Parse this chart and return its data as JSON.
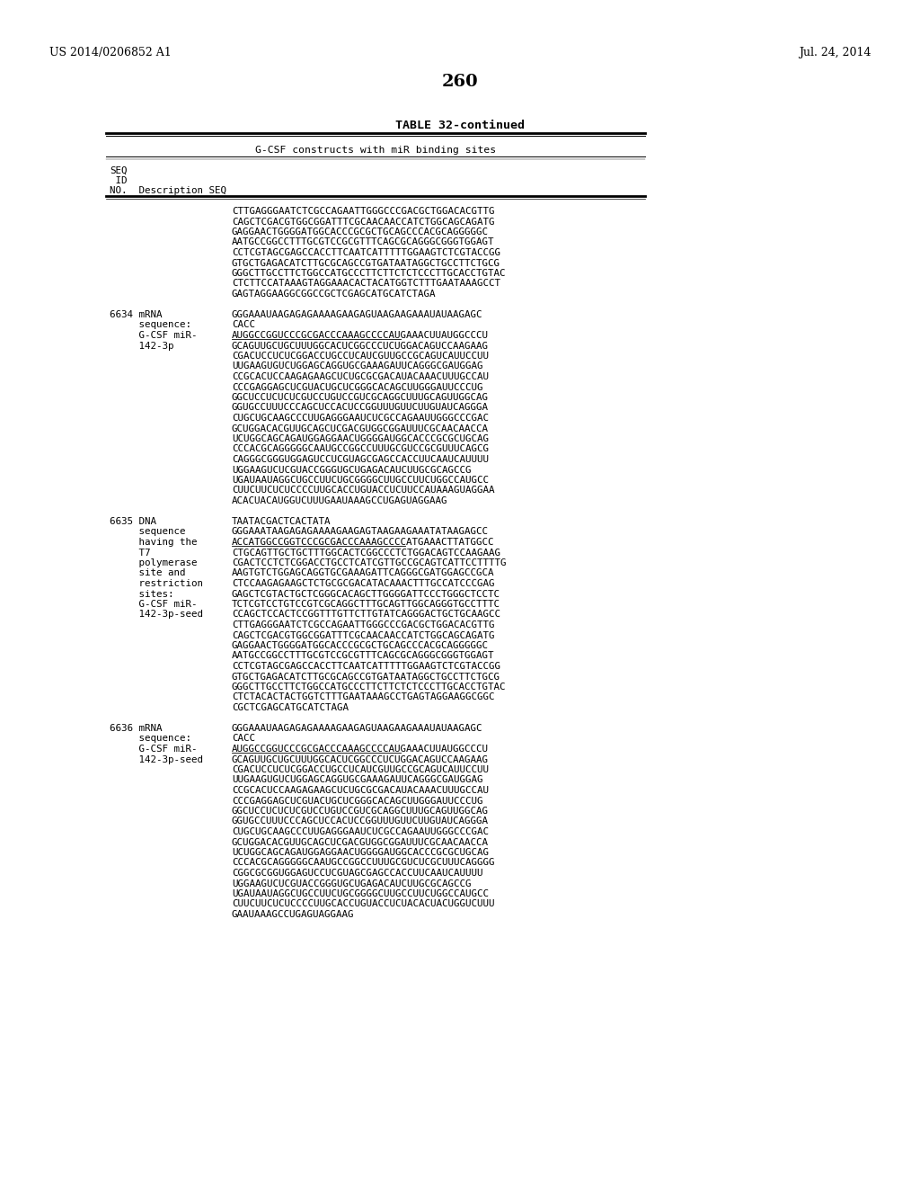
{
  "page_number": "260",
  "patent_number": "US 2014/0206852 A1",
  "date": "Jul. 24, 2014",
  "table_title": "TABLE 32-continued",
  "table_subtitle": "G-CSF constructs with miR binding sites",
  "background_color": "#ffffff",
  "text_color": "#000000",
  "leading_seq_lines": [
    "CTTGAGGGAATCTCGCCAGAATTGGGCCCGACGCTGGACACGTTG",
    "CAGCTCGACGTGGCGGATTTCGCAACAACCATCTGGCAGCAGATG",
    "GAGGAACTGGGGATGGCACCCGCGCTGCAGCCCACGCAGGGGGC",
    "AATGCCGGCCTTTGCGTCCGCGTTTCAGCGCAGGGCGGGTGGAGT",
    "CCTCGTAGCGAGCCACCTTCAATCATTTTTGGAAGTCTCGTACCGG",
    "GTGCTGAGACATCTTGCGCAGCCGTGATAATAGGCTGCCTTCTGCG",
    "GGGCTTGCCTTCTGGCCATGCCCTTCTTCTCTCCCTTGCACCTGTAC",
    "CTCTTCCATAAAGTAGGAAACACTACATGGTCTTTGAATAAAGCCT",
    "GAGTAGGAAGGCGGCCGCTCGAGCATGCATCTAGA"
  ],
  "entries": [
    {
      "seq_id": "6634",
      "type": "mRNA",
      "desc_col": [
        [
          "6634 mRNA",
          "GGGAAAUAAGAGAGAAAAGAAGAGUAAGAAGAAAUAUAAGAGC"
        ],
        [
          "     sequence:",
          "CACC"
        ],
        [
          "     G-CSF miR-",
          "AUGGCCGGUCCCGCGACCCAAAGCCCCAUGAAACUUAUGGCCCU"
        ],
        [
          "     142-3p",
          "GCAGUUGCUGCUUUGGCACUCGGCCCUCUGGACAGUCCAAGAAG"
        ],
        [
          "",
          "CGACUCCUCUCGGACCUGCCUCAUCGUUGCCGCAGUCAUUCCUU"
        ],
        [
          "",
          "UUGAAGUGUCUGGAGCAGGUGCGAAAGAUUCAGGGCGAUGGAG"
        ],
        [
          "",
          "CCGCACUCCAAGAGAAGCUCUGCGCGACAUACAAACUUUGCCAU"
        ],
        [
          "",
          "CCCGAGGAGCUCGUACUGCUCGGGCACAGCUUGGGAUUCCCUG"
        ],
        [
          "",
          "GGCUCCUCUCUCGUCCUGUCCGUCGCAGGCUUUGCAGUUGGCAG"
        ],
        [
          "",
          "GGUGCCUUUCCCAGCUCCACUCCGGUUUGUUCUUGUAUCAGGGA"
        ],
        [
          "",
          "CUGCUGCAAGCCCUUGAGGGAAUCUCGCCAGAAUUGGGCCCGAC"
        ],
        [
          "",
          "GCUGGACACGUUGCAGCUCGACGUGGCGGAUUUCGCAACAACCA"
        ],
        [
          "",
          "UCUGGCAGCAGAUGGAGGAACUGGGGAUGGCACCCGCGCUGCAG"
        ],
        [
          "",
          "CCCACGCAGGGGGCAAUGCCGGCCUUUGCGUCCGCGUUUCAGCG"
        ],
        [
          "",
          "CAGGGCGGGUGGAGUCCUCGUAGCGAGCCACCUUCAAUCAUUUU"
        ],
        [
          "",
          "UGGAAGUCUCGUACCGGGUGCUGAGACAUCUUGCGCAGCCG"
        ],
        [
          "",
          "UGAUAAUAGGCUGCCUUCUGCGGGGCUUGCCUUCUGGCCAUGCC"
        ],
        [
          "",
          "CUUCUUCUCUCCCCUUGCACCUGUACCUCUUCCAUAAAGUAGGAA"
        ],
        [
          "",
          "ACACUACAUGGUCUUUGAAUAAAGCCUGAGUAGGAAG"
        ]
      ],
      "underline_row": 2
    },
    {
      "seq_id": "6635",
      "type": "DNA",
      "desc_col": [
        [
          "6635 DNA",
          "TAATACGACTCACTATA"
        ],
        [
          "     sequence",
          "GGGAAATAAGAGAGAAAAGAAGAGTAAGAAGAAATATAAGAGCC"
        ],
        [
          "     having the",
          "ACCATGGCCGGTCCCGCGACCCAAAGCCCCATGAAACTTATGGCC"
        ],
        [
          "     T7",
          "CTGCAGTTGCTGCTTTGGCACTCGGCCCTCTGGACAGTCCAAGAAG"
        ],
        [
          "     polymerase",
          "CGACTCCTCTCGGACCTGCCTCATCGTTGCCGCAGTCATTCCTTTTG"
        ],
        [
          "     site and",
          "AAGTGTCTGGAGCAGGTGCGAAAGATTCAGGGCGATGGAGCCGCA"
        ],
        [
          "     restriction",
          "CTCCAAGAGAAGCTCTGCGCGACATACAAACTTTGCCATCCCGAG"
        ],
        [
          "     sites:",
          "GAGCTCGTACTGCTCGGGCACAGCTTGGGGATTCCCTGGGCTCCTC"
        ],
        [
          "     G-CSF miR-",
          "TCTCGTCCTGTCCGTCGCAGGCTTTGCAGTTGGCAGGGTGCCTTTC"
        ],
        [
          "     142-3p-seed",
          "CCAGCTCCACTCCGGTTTGTTCTTGTATCAGGGACTGCTGCAAGCC"
        ],
        [
          "",
          "CTTGAGGGAATCTCGCCAGAATTGGGCCCGACGCTGGACACGTTG"
        ],
        [
          "",
          "CAGCTCGACGTGGCGGATTTCGCAACAACCATCTGGCAGCAGATG"
        ],
        [
          "",
          "GAGGAACTGGGGATGGCACCCGCGCTGCAGCCCACGCAGGGGGC"
        ],
        [
          "",
          "AATGCCGGCCTTTGCGTCCGCGTTTCAGCGCAGGGCGGGTGGAGT"
        ],
        [
          "",
          "CCTCGTAGCGAGCCACCTTCAATCATTTTTGGAAGTCTCGTACCGG"
        ],
        [
          "",
          "GTGCTGAGACATCTTGCGCAGCCGTGATAATAGGCTGCCTTCTGCG"
        ],
        [
          "",
          "GGGCTTGCCTTCTGGCCATGCCCTTCTTCTCTCCCTTGCACCTGTAC"
        ],
        [
          "",
          "CTCTACACTACTGGTCTTTGAATAAAGCCTGAGTAGGAAGGCGGC"
        ],
        [
          "",
          "CGCTCGAGCATGCATCTAGA"
        ]
      ],
      "underline_row": 2
    },
    {
      "seq_id": "6636",
      "type": "mRNA",
      "desc_col": [
        [
          "6636 mRNA",
          "GGGAAAUAAGAGAGAAAAGAAGAGUAAGAAGAAAUAUAAGAGC"
        ],
        [
          "     sequence:",
          "CACC"
        ],
        [
          "     G-CSF miR-",
          "AUGGCCGGUCCCGCGACCCAAAGCCCCAUGAAACUUAUGGCCCU"
        ],
        [
          "     142-3p-seed",
          "GCAGUUGCUGCUUUGGCACUCGGCCCUCUGGACAGUCCAAGAAG"
        ],
        [
          "",
          "CGACUCCUCUCGGACCUGCCUCAUCGUUGCCGCAGUCAUUCCUU"
        ],
        [
          "",
          "UUGAAGUGUCUGGAGCAGGUGCGAAAGAUUCAGGGCGAUGGAG"
        ],
        [
          "",
          "CCGCACUCCAAGAGAAGCUCUGCGCGACAUACAAACUUUGCCAU"
        ],
        [
          "",
          "CCCGAGGAGCUCGUACUGCUCGGGCACAGCUUGGGAUUCCCUG"
        ],
        [
          "",
          "GGCUCCUCUCUCGUCCUGUCCGUCGCAGGCUUUGCAGUUGGCAG"
        ],
        [
          "",
          "GGUGCCUUUCCCAGCUCCACUCCGGUUUGUUCUUGUAUCAGGGA"
        ],
        [
          "",
          "CUGCUGCAAGCCCUUGAGGGAAUCUCGCCAGAAUUGGGCCCGAC"
        ],
        [
          "",
          "GCUGGACACGUUGCAGCUCGACGUGGCGGAUUUCGCAACAACCA"
        ],
        [
          "",
          "UCUGGCAGCAGAUGGAGGAACUGGGGAUGGCACCCGCGCUGCAG"
        ],
        [
          "",
          "CCCACGCAGGGGGCAAUGCCGGCCUUUGCGUCUCGCUUUCAGGGG"
        ],
        [
          "",
          "CGGCGCGGUGGAGUCCUCGUAGCGAGCCACCUUCAAUCAUUUU"
        ],
        [
          "",
          "UGGAAGUCUCGUACCGGGUGCUGAGACAUCUUGCGCAGCCG"
        ],
        [
          "",
          "UGAUAAUAGGCUGCCUUCUGCGGGGCUUGCCUUCUGGCCAUGCC"
        ],
        [
          "",
          "CUUCUUCUCUCCCCUUGCACCUGUACCUCUACACUACUGGUCUUU"
        ],
        [
          "",
          "GAAUAAAGCCUGAGUAGGAAG"
        ]
      ],
      "underline_row": 2
    }
  ]
}
